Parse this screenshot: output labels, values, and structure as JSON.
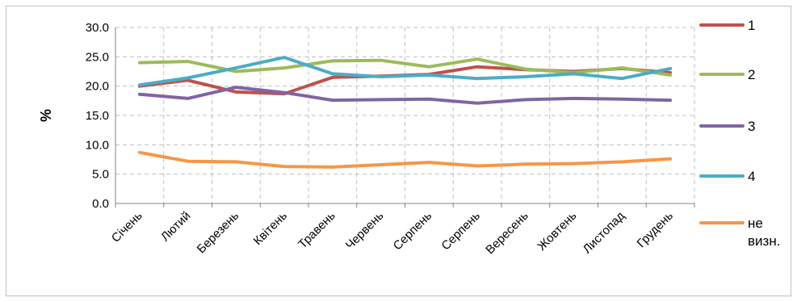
{
  "chart_data": {
    "type": "line",
    "title": "",
    "xlabel": "",
    "ylabel": "%",
    "ylim": [
      0,
      30
    ],
    "yticks": [
      "0.0",
      "5.0",
      "10.0",
      "15.0",
      "20.0",
      "25.0",
      "30.0"
    ],
    "grid": true,
    "legend_position": "right",
    "categories": [
      "Січень",
      "Лютий",
      "Березень",
      "Квітень",
      "Травень",
      "Червень",
      "Серпень",
      "Серпень",
      "Вересень",
      "Жовтень",
      "Листопад",
      "Грудень"
    ],
    "series": [
      {
        "name": "1",
        "color": "#c0504d",
        "values": [
          20.0,
          21.0,
          19.0,
          18.7,
          21.5,
          21.7,
          22.0,
          23.3,
          22.8,
          22.5,
          23.0,
          22.3
        ]
      },
      {
        "name": "2",
        "color": "#9bbb59",
        "values": [
          24.0,
          24.2,
          22.5,
          23.1,
          24.3,
          24.4,
          23.3,
          24.6,
          22.9,
          22.3,
          23.1,
          21.9
        ]
      },
      {
        "name": "3",
        "color": "#8064a2",
        "values": [
          18.6,
          17.9,
          19.8,
          18.9,
          17.6,
          17.7,
          17.8,
          17.1,
          17.7,
          17.9,
          17.8,
          17.6
        ]
      },
      {
        "name": "4",
        "color": "#4bacc6",
        "values": [
          20.2,
          21.4,
          23.1,
          24.9,
          22.1,
          21.6,
          21.9,
          21.3,
          21.6,
          22.1,
          21.3,
          23.0
        ]
      },
      {
        "name": "не визн.",
        "legend_lines": [
          "не",
          "визн."
        ],
        "color": "#f79646",
        "values": [
          8.7,
          7.2,
          7.1,
          6.3,
          6.2,
          6.6,
          7.0,
          6.4,
          6.7,
          6.8,
          7.1,
          7.6
        ]
      }
    ]
  }
}
